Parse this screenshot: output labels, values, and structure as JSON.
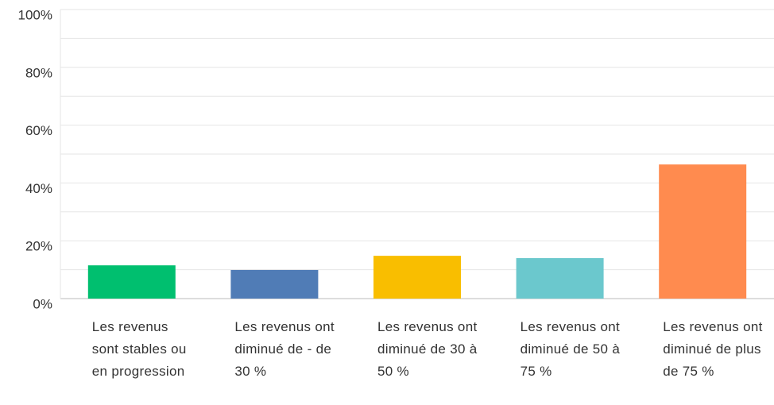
{
  "chart_data": {
    "type": "bar",
    "categories": [
      "Les revenus sont stables ou en progression",
      "Les revenus ont diminué de - de 30 %",
      "Les revenus ont diminué de 30 à 50 %",
      "Les revenus ont diminué de 50 à 75 %",
      "Les revenus ont diminué de plus de 75 %"
    ],
    "values": [
      11.5,
      9.9,
      14.8,
      14.0,
      46.4
    ],
    "colors": [
      "#00bf6f",
      "#507cb6",
      "#f9be00",
      "#6bc8cd",
      "#ff8b4f"
    ],
    "ylim": [
      0,
      100
    ],
    "yticks": [
      {
        "value": 0,
        "label": "0%"
      },
      {
        "value": 20,
        "label": "20%"
      },
      {
        "value": 40,
        "label": "40%"
      },
      {
        "value": 60,
        "label": "60%"
      },
      {
        "value": 80,
        "label": "80%"
      },
      {
        "value": 100,
        "label": "100%"
      }
    ],
    "yminorticks": [
      10,
      30,
      50,
      70,
      90
    ],
    "grid": true
  }
}
